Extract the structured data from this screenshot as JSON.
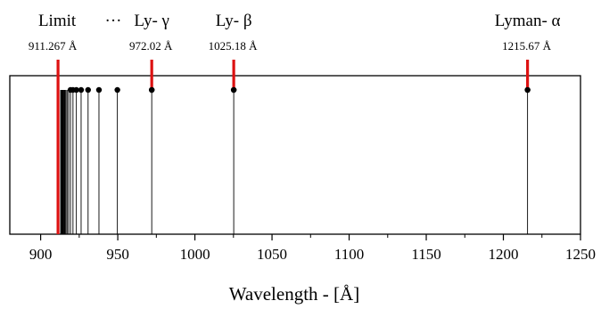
{
  "chart_data": {
    "type": "line",
    "title": "",
    "xlabel": "Wavelength - [Å]",
    "ylabel": "",
    "xlim": [
      880,
      1250
    ],
    "xticks": [
      900,
      950,
      1000,
      1050,
      1100,
      1150,
      1200,
      1250
    ],
    "grid": false,
    "lines_wavelength": [
      1215.67,
      1025.18,
      972.02,
      949.74,
      937.8,
      930.75,
      926.23,
      923.15,
      920.96,
      919.35,
      918.13,
      917.18,
      916.43,
      915.82,
      915.33,
      914.92,
      914.58,
      914.29,
      914.04,
      913.83,
      913.64,
      913.48,
      913.34,
      913.21,
      913.1,
      913.0
    ],
    "series_limit": 911.267,
    "highlighted_lines": [
      {
        "id": "lyman-alpha",
        "name": "Lyman- α",
        "wavelength": 1215.67,
        "label": "1215.67 Å"
      },
      {
        "id": "lyman-beta",
        "name": "Ly- β",
        "wavelength": 1025.18,
        "label": "1025.18 Å"
      },
      {
        "id": "lyman-gamma",
        "name": "Ly- γ",
        "wavelength": 972.02,
        "label": "972.02 Å"
      },
      {
        "id": "lyman-limit",
        "name": "Limit",
        "wavelength": 911.267,
        "label": "911.267 Å"
      }
    ],
    "ellipsis": "···",
    "colors": {
      "highlight": "#dd1111",
      "line": "#000000",
      "frame": "#000000"
    }
  }
}
